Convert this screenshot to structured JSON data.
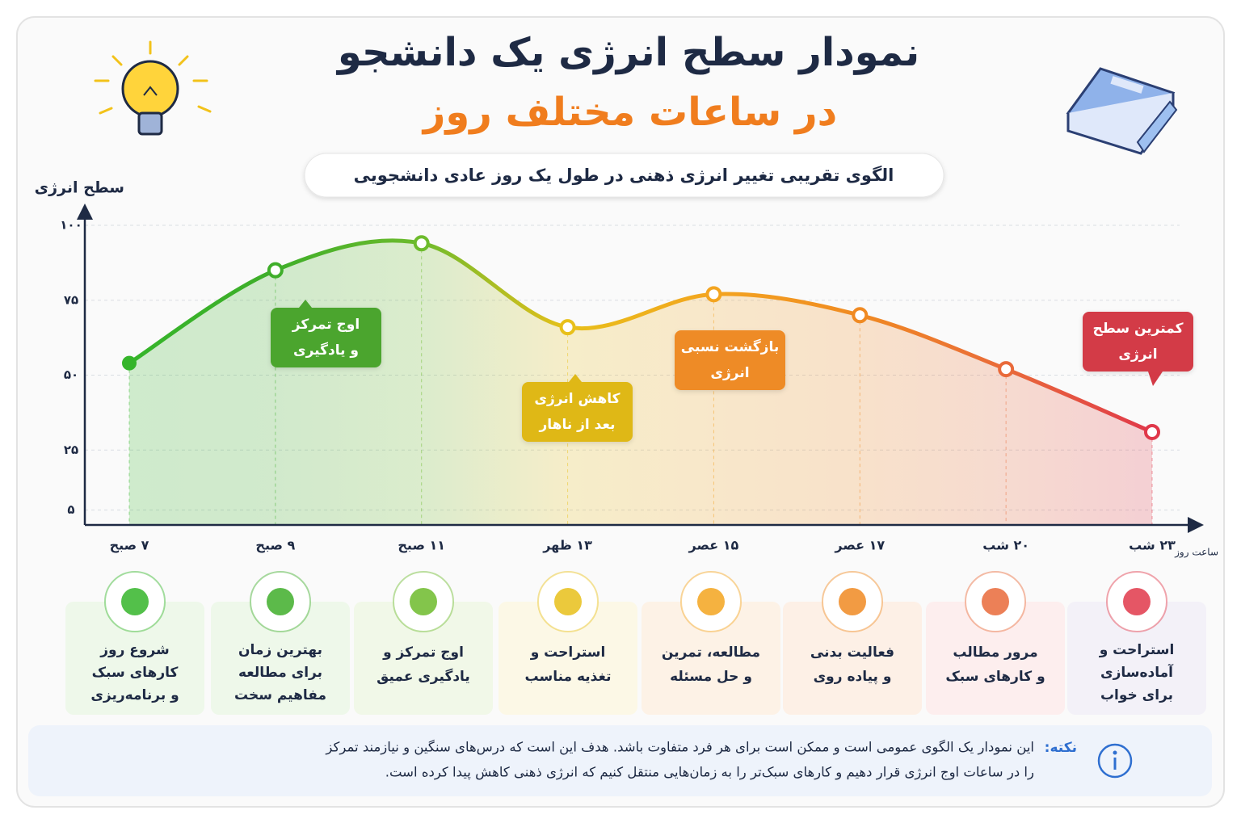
{
  "chart_data": {
    "type": "line",
    "title": "نمودار سطح انرژی یک دانشجو",
    "subtitle": "در ساعات مختلف روز",
    "description": "الگوی تقریبی تغییر انرژی ذهنی در طول یک روز عادی دانشجویی",
    "y_label": "سطح انرژی",
    "x_label": "ساعت روز",
    "categories": [
      "۷ صبح",
      "۹ صبح",
      "۱۱ صبح",
      "۱۳ ظهر",
      "۱۵ عصر",
      "۱۷ عصر",
      "۲۰ شب",
      "۲۳ شب"
    ],
    "values": [
      54,
      85,
      94,
      66,
      77,
      70,
      52,
      31
    ],
    "marker_colors": [
      "#35b52a",
      "#3fae2a",
      "#6dbb2c",
      "#e8c01a",
      "#f3a41f",
      "#f08a22",
      "#e96a3a",
      "#e0384a"
    ],
    "ylim": [
      0,
      100
    ],
    "yticks": [
      {
        "value": 5,
        "label": "۵"
      },
      {
        "value": 25,
        "label": "۲۵"
      },
      {
        "value": 50,
        "label": "۵۰"
      },
      {
        "value": 75,
        "label": "۷۵"
      },
      {
        "value": 100,
        "label": "۱۰۰"
      }
    ],
    "grid": true,
    "annotations": [
      {
        "lines": [
          "اوج تمرکز",
          "و یادگیری"
        ],
        "color": "#4ba52f"
      },
      {
        "lines": [
          "کاهش انرژی",
          "بعد از ناهار"
        ],
        "color": "#dfb817"
      },
      {
        "lines": [
          "بازگشت نسبی",
          "انرژی"
        ],
        "color": "#ee8b25"
      },
      {
        "lines": [
          "کمترین سطح",
          "انرژی"
        ],
        "color": "#d33a46"
      }
    ],
    "activities": [
      {
        "lines": [
          "شروع روز",
          "کارهای سبک",
          "و برنامه‌ریزی"
        ],
        "color": "#eef8ea"
      },
      {
        "lines": [
          "بهترین زمان",
          "برای مطالعه",
          "مفاهیم سخت"
        ],
        "color": "#eef8ea"
      },
      {
        "lines": [
          "اوج تمرکز و",
          "یادگیری عمیق"
        ],
        "color": "#f1f8e8"
      },
      {
        "lines": [
          "استراحت و",
          "تغذیه مناسب"
        ],
        "color": "#fcf8e6"
      },
      {
        "lines": [
          "مطالعه، تمرین",
          "و حل مسئله"
        ],
        "color": "#fdf2e6"
      },
      {
        "lines": [
          "فعالیت بدنی",
          "و پیاده روی"
        ],
        "color": "#fdf0e6"
      },
      {
        "lines": [
          "مرور مطالب",
          "و کارهای سبک"
        ],
        "color": "#fdeeee"
      },
      {
        "lines": [
          "استراحت و",
          "آماده‌سازی",
          "برای خواب"
        ],
        "color": "#f3f1f8"
      }
    ]
  },
  "note": {
    "label": "نکته:",
    "lines": [
      "این نمودار یک الگوی عمومی است و ممکن است برای هر فرد متفاوت باشد. هدف این است که درس‌های سنگین و نیازمند تمرکز",
      "را در ساعات اوج انرژی قرار دهیم و کارهای سبک‌تر را به زمان‌هایی منتقل کنیم که انرژی ذهنی کاهش پیدا کرده است."
    ]
  }
}
